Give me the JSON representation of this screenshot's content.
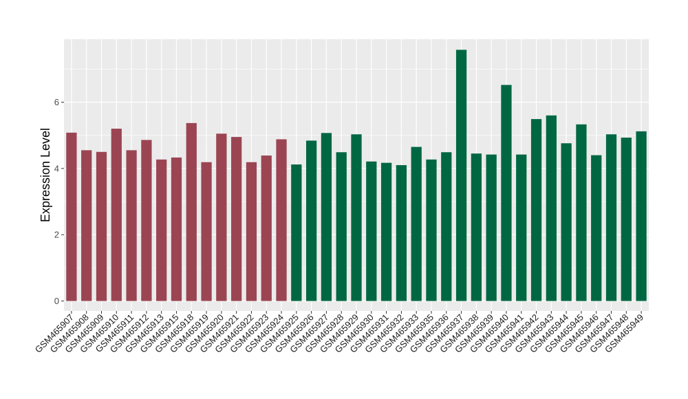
{
  "chart_data": {
    "type": "bar",
    "title": "",
    "xlabel": "",
    "ylabel": "Expression Level",
    "ylim": [
      -0.3,
      7.9
    ],
    "yticks": [
      0,
      2,
      4,
      6
    ],
    "grid": true,
    "legend": "none",
    "panel_bg": "#ebebeb",
    "grid_color": "#ffffff",
    "categories": [
      "GSM465907",
      "GSM465908",
      "GSM465909",
      "GSM465910",
      "GSM465911",
      "GSM465912",
      "GSM465913",
      "GSM465915",
      "GSM465918",
      "GSM465919",
      "GSM465920",
      "GSM465921",
      "GSM465922",
      "GSM465923",
      "GSM465924",
      "GSM465925",
      "GSM465926",
      "GSM465927",
      "GSM465928",
      "GSM465929",
      "GSM465930",
      "GSM465931",
      "GSM465932",
      "GSM465933",
      "GSM465935",
      "GSM465936",
      "GSM465937",
      "GSM465938",
      "GSM465939",
      "GSM465940",
      "GSM465941",
      "GSM465942",
      "GSM465943",
      "GSM465944",
      "GSM465945",
      "GSM465946",
      "GSM465947",
      "GSM465948",
      "GSM465949"
    ],
    "values": [
      5.08,
      4.55,
      4.5,
      5.2,
      4.55,
      4.86,
      4.27,
      4.33,
      5.37,
      4.19,
      5.05,
      4.95,
      4.19,
      4.39,
      4.88,
      4.12,
      4.84,
      5.07,
      4.49,
      5.03,
      4.21,
      4.17,
      4.1,
      4.65,
      4.27,
      4.49,
      7.58,
      4.45,
      4.42,
      6.52,
      4.42,
      5.49,
      5.6,
      4.76,
      5.33,
      4.4,
      5.03,
      4.93,
      5.12
    ],
    "group_colors": [
      "#9b4553",
      "#006743"
    ],
    "groups": [
      0,
      0,
      0,
      0,
      0,
      0,
      0,
      0,
      0,
      0,
      0,
      0,
      0,
      0,
      0,
      1,
      1,
      1,
      1,
      1,
      1,
      1,
      1,
      1,
      1,
      1,
      1,
      1,
      1,
      1,
      1,
      1,
      1,
      1,
      1,
      1,
      1,
      1,
      1
    ]
  }
}
